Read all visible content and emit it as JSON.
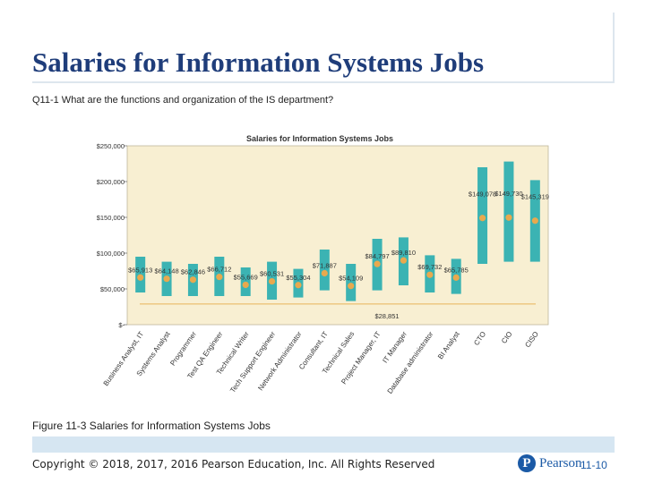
{
  "slide": {
    "title": "Salaries for Information Systems Jobs",
    "subtitle": "Q11-1 What are the functions and organization of the IS department?",
    "caption": "Figure 11-3 Salaries for Information Systems Jobs",
    "copyright": "Copyright © 2018, 2017, 2016 Pearson Education, Inc. All Rights Reserved",
    "brand_letter": "P",
    "brand": "Pearson",
    "page": "11-10"
  },
  "colors": {
    "title": "#1f3d7a",
    "plot_bg": "#f8efd2",
    "bar": "#3bb3b3",
    "median": "#e8a94e",
    "baseline": "#e8b45a",
    "band": "#d6e6f2",
    "brand": "#1b5aa6"
  },
  "chart_data": {
    "type": "bar",
    "title": "Salaries for Information Systems Jobs",
    "ylim": [
      0,
      250000
    ],
    "yticks": [
      {
        "value": 0,
        "label": "$-"
      },
      {
        "value": 50000,
        "label": "$50,000"
      },
      {
        "value": 100000,
        "label": "$100,000"
      },
      {
        "value": 150000,
        "label": "$150,000"
      },
      {
        "value": 200000,
        "label": "$200,000"
      },
      {
        "value": 250000,
        "label": "$250,000"
      }
    ],
    "categories": [
      "Business Analyst, IT",
      "Systems Analyst",
      "Programmer",
      "Test QA Engineer",
      "Technical Writer",
      "Tech Support Engineer",
      "Network Administrator",
      "Consultant, IT",
      "Technical Sales",
      "Project Manager, IT",
      "IT Manager",
      "Database administrator",
      "BI Analyst",
      "CTO",
      "CIO",
      "CISO"
    ],
    "series": [
      {
        "values_low": [
          45000,
          40000,
          40000,
          40000,
          40000,
          35000,
          38000,
          48000,
          33000,
          48000,
          55000,
          45000,
          43000,
          85000,
          88000,
          88000
        ]
      },
      {
        "values": [
          65913,
          64148,
          62846,
          66712,
          55669,
          60531,
          55304,
          71887,
          54109,
          84797,
          89810,
          69732,
          65785,
          149078,
          149730,
          145319
        ],
        "labels": [
          "$65,913",
          "$64,148",
          "$62,846",
          "$66,712",
          "$55,669",
          "$60,531",
          "$55,304",
          "$71,887",
          "$54,109",
          "$84,797",
          "$89,810",
          "$69,732",
          "$65,785",
          "$149,078",
          "$149,730",
          "$145,319"
        ]
      },
      {
        "values_high": [
          95000,
          88000,
          85000,
          95000,
          80000,
          88000,
          78000,
          105000,
          85000,
          120000,
          122000,
          97000,
          92000,
          220000,
          228000,
          202000
        ]
      }
    ],
    "reference_line": {
      "value": 28851,
      "label": "$28,851"
    },
    "legend": "none",
    "grid": false
  }
}
